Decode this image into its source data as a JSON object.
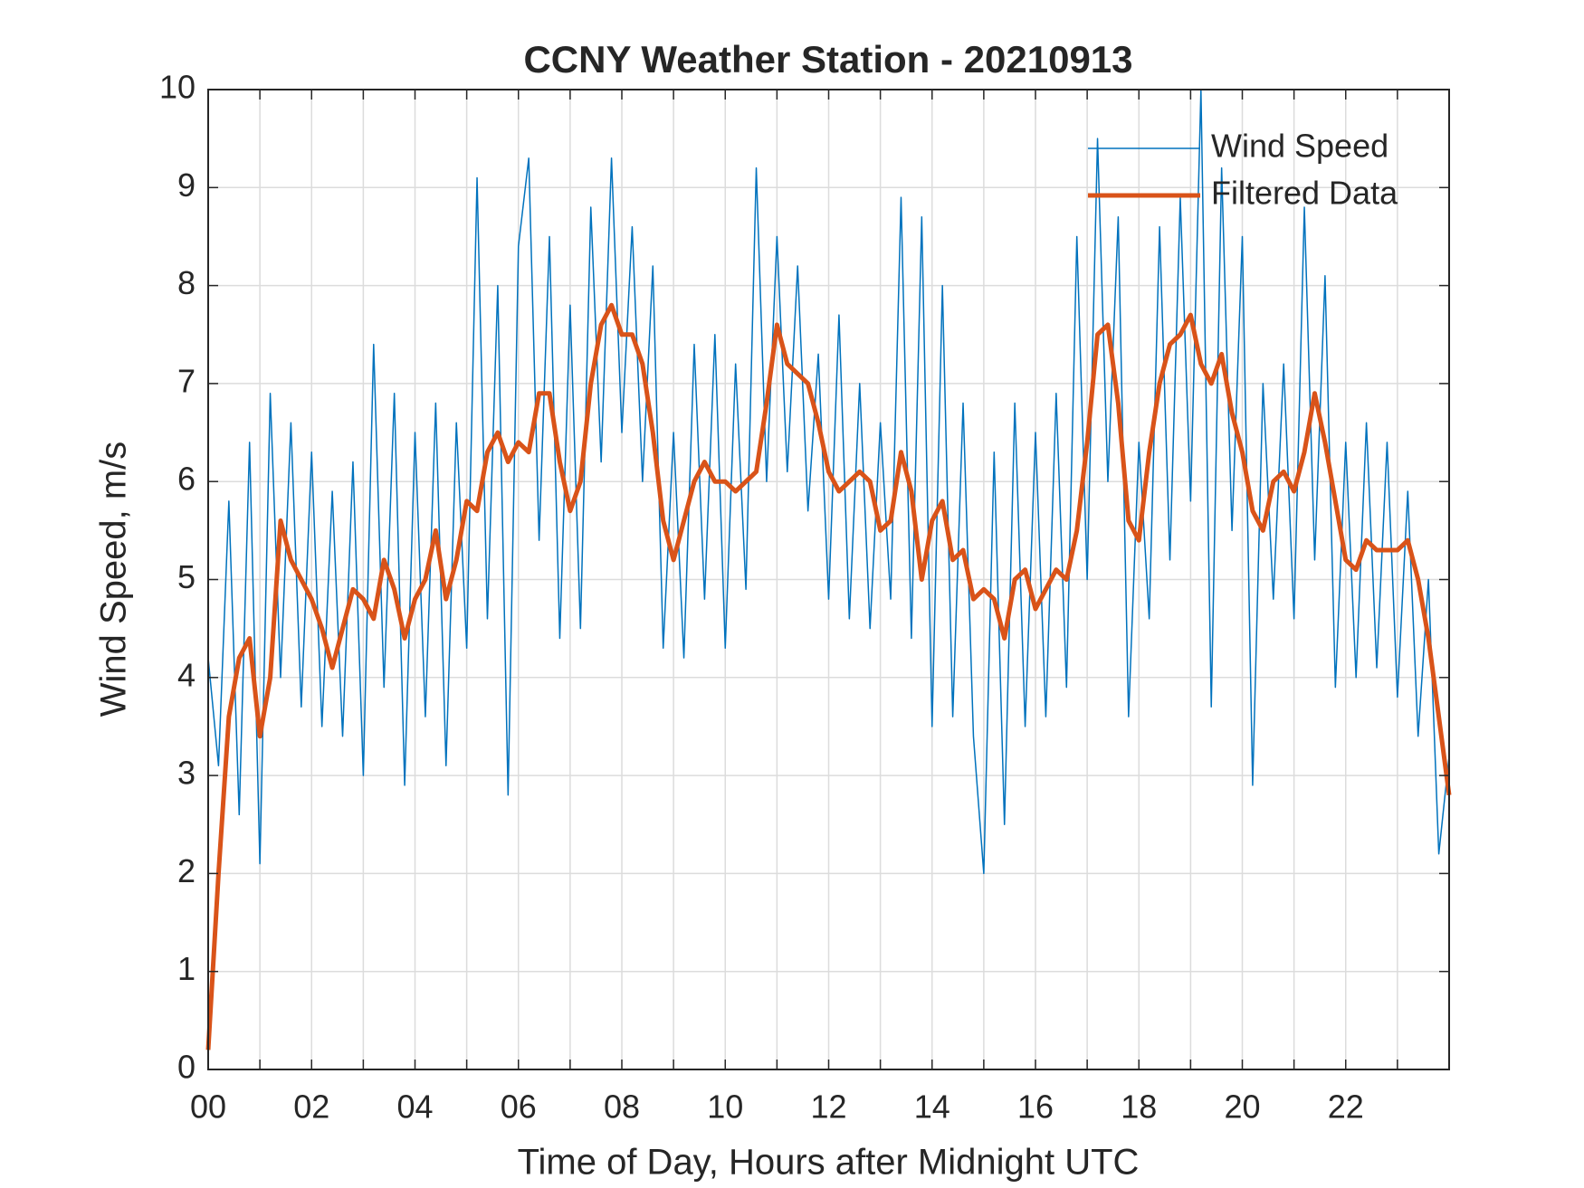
{
  "chart_data": {
    "type": "line",
    "title": "CCNY Weather Station - 20210913",
    "xlabel": "Time of Day, Hours after Midnight UTC",
    "ylabel": "Wind Speed, m/s",
    "x": [
      0,
      0.2,
      0.4,
      0.6,
      0.8,
      1,
      1.2,
      1.4,
      1.6,
      1.8,
      2,
      2.2,
      2.4,
      2.6,
      2.8,
      3,
      3.2,
      3.4,
      3.6,
      3.8,
      4,
      4.2,
      4.4,
      4.6,
      4.8,
      5,
      5.2,
      5.4,
      5.6,
      5.8,
      6,
      6.2,
      6.4,
      6.6,
      6.8,
      7,
      7.2,
      7.4,
      7.6,
      7.8,
      8,
      8.2,
      8.4,
      8.6,
      8.8,
      9,
      9.2,
      9.4,
      9.6,
      9.8,
      10,
      10.2,
      10.4,
      10.6,
      10.8,
      11,
      11.2,
      11.4,
      11.6,
      11.8,
      12,
      12.2,
      12.4,
      12.6,
      12.8,
      13,
      13.2,
      13.4,
      13.6,
      13.8,
      14,
      14.2,
      14.4,
      14.6,
      14.8,
      15,
      15.2,
      15.4,
      15.6,
      15.8,
      16,
      16.2,
      16.4,
      16.6,
      16.8,
      17,
      17.2,
      17.4,
      17.6,
      17.8,
      18,
      18.2,
      18.4,
      18.6,
      18.8,
      19,
      19.2,
      19.4,
      19.6,
      19.8,
      20,
      20.2,
      20.4,
      20.6,
      20.8,
      21,
      21.2,
      21.4,
      21.6,
      21.8,
      22,
      22.2,
      22.4,
      22.6,
      22.8,
      23,
      23.2,
      23.4,
      23.6,
      23.8,
      24
    ],
    "series": [
      {
        "name": "Wind Speed",
        "color": "#0072BD",
        "width": 1.5,
        "values": [
          4.2,
          3.1,
          5.8,
          2.6,
          6.4,
          2.1,
          6.9,
          4.0,
          6.6,
          3.7,
          6.3,
          3.5,
          5.9,
          3.4,
          6.2,
          3.0,
          7.4,
          3.9,
          6.9,
          2.9,
          6.5,
          3.6,
          6.8,
          3.1,
          6.6,
          4.3,
          9.1,
          4.6,
          8.0,
          2.8,
          8.4,
          9.3,
          5.4,
          8.5,
          4.4,
          7.8,
          4.5,
          8.8,
          6.2,
          9.3,
          6.5,
          8.6,
          6.0,
          8.2,
          4.3,
          6.5,
          4.2,
          7.4,
          4.8,
          7.5,
          4.3,
          7.2,
          4.9,
          9.2,
          6.0,
          8.5,
          6.1,
          8.2,
          5.7,
          7.3,
          4.8,
          7.7,
          4.6,
          7.0,
          4.5,
          6.6,
          4.8,
          8.9,
          4.4,
          8.7,
          3.5,
          8.0,
          3.6,
          6.8,
          3.4,
          2.0,
          6.3,
          2.5,
          6.8,
          3.5,
          6.5,
          3.6,
          6.9,
          3.9,
          8.5,
          5.0,
          9.5,
          6.0,
          8.7,
          3.6,
          6.4,
          4.6,
          8.6,
          5.2,
          8.9,
          5.8,
          10.0,
          3.7,
          9.2,
          5.5,
          8.5,
          2.9,
          7.0,
          4.8,
          7.2,
          4.6,
          8.8,
          5.2,
          8.1,
          3.9,
          6.4,
          4.0,
          6.6,
          4.1,
          6.4,
          3.8,
          5.9,
          3.4,
          5.0,
          2.2,
          3.2
        ]
      },
      {
        "name": "Filtered Data",
        "color": "#D95319",
        "width": 5,
        "values": [
          0.2,
          2.0,
          3.6,
          4.2,
          4.4,
          3.4,
          4.0,
          5.6,
          5.2,
          5.0,
          4.8,
          4.5,
          4.1,
          4.5,
          4.9,
          4.8,
          4.6,
          5.2,
          4.9,
          4.4,
          4.8,
          5.0,
          5.5,
          4.8,
          5.2,
          5.8,
          5.7,
          6.3,
          6.5,
          6.2,
          6.4,
          6.3,
          6.9,
          6.9,
          6.2,
          5.7,
          6.0,
          7.0,
          7.6,
          7.8,
          7.5,
          7.5,
          7.2,
          6.5,
          5.6,
          5.2,
          5.6,
          6.0,
          6.2,
          6.0,
          6.0,
          5.9,
          6.0,
          6.1,
          6.8,
          7.6,
          7.2,
          7.1,
          7.0,
          6.6,
          6.1,
          5.9,
          6.0,
          6.1,
          6.0,
          5.5,
          5.6,
          6.3,
          5.9,
          5.0,
          5.6,
          5.8,
          5.2,
          5.3,
          4.8,
          4.9,
          4.8,
          4.4,
          5.0,
          5.1,
          4.7,
          4.9,
          5.1,
          5.0,
          5.5,
          6.4,
          7.5,
          7.6,
          6.8,
          5.6,
          5.4,
          6.3,
          7.0,
          7.4,
          7.5,
          7.7,
          7.2,
          7.0,
          7.3,
          6.7,
          6.3,
          5.7,
          5.5,
          6.0,
          6.1,
          5.9,
          6.3,
          6.9,
          6.4,
          5.8,
          5.2,
          5.1,
          5.4,
          5.3,
          5.3,
          5.3,
          5.4,
          5.0,
          4.4,
          3.6,
          2.8
        ]
      }
    ],
    "xlim": [
      0,
      24
    ],
    "ylim": [
      0,
      10
    ],
    "xticks": [
      {
        "value": 0,
        "label": "00"
      },
      {
        "value": 2,
        "label": "02"
      },
      {
        "value": 4,
        "label": "04"
      },
      {
        "value": 6,
        "label": "06"
      },
      {
        "value": 8,
        "label": "08"
      },
      {
        "value": 10,
        "label": "10"
      },
      {
        "value": 12,
        "label": "12"
      },
      {
        "value": 14,
        "label": "14"
      },
      {
        "value": 16,
        "label": "16"
      },
      {
        "value": 18,
        "label": "18"
      },
      {
        "value": 20,
        "label": "20"
      },
      {
        "value": 22,
        "label": "22"
      }
    ],
    "xminorticks": [
      1,
      3,
      5,
      7,
      9,
      11,
      13,
      15,
      17,
      19,
      21,
      23
    ],
    "yticks": [
      0,
      1,
      2,
      3,
      4,
      5,
      6,
      7,
      8,
      9,
      10
    ],
    "grid": true,
    "legend": "northeast"
  }
}
